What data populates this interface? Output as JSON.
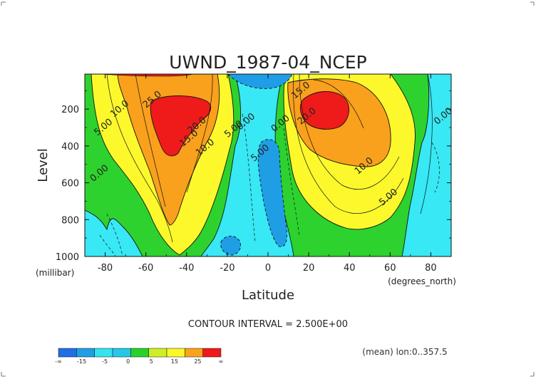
{
  "chart_data": {
    "type": "contour",
    "title": "UWND_1987-04_NCEP",
    "xlabel": "Latitude",
    "ylabel": "Level",
    "x_units": "(degrees_north)",
    "y_units": "(millibar)",
    "xlim": [
      -90,
      90
    ],
    "ylim": [
      1000,
      10
    ],
    "x_ticks": [
      "-80",
      "-60",
      "-40",
      "-20",
      "0",
      "20",
      "40",
      "60",
      "80"
    ],
    "y_ticks": [
      "200",
      "400",
      "600",
      "800",
      "1000"
    ],
    "contour_interval_text": "CONTOUR INTERVAL = 2.500E+00",
    "footnote": "(mean) lon:0..357.5",
    "features": [
      {
        "kind": "westerly-jet",
        "lat": -52,
        "level": 250,
        "max": 27.5
      },
      {
        "kind": "westerly-jet",
        "lat": 28,
        "level": 170,
        "max": 32.5
      },
      {
        "kind": "easterly-minimum",
        "lat": 2,
        "level": 600,
        "min": -7.5
      }
    ],
    "contour_labels": [
      {
        "text": "10.0",
        "lat": -72,
        "level": 210
      },
      {
        "text": "5.00",
        "lat": -80,
        "level": 310
      },
      {
        "text": "0.00",
        "lat": -82,
        "level": 560
      },
      {
        "text": "25.0",
        "lat": -56,
        "level": 160
      },
      {
        "text": "20.0",
        "lat": -34,
        "level": 300
      },
      {
        "text": "15.0",
        "lat": -38,
        "level": 370
      },
      {
        "text": "10.0",
        "lat": -30,
        "level": 420
      },
      {
        "text": "5.00",
        "lat": -16,
        "level": 320
      },
      {
        "text": "0.00",
        "lat": -10,
        "level": 280
      },
      {
        "text": "5.00",
        "lat": -3,
        "level": 450
      },
      {
        "text": "0.00",
        "lat": 7,
        "level": 290
      },
      {
        "text": "15.0",
        "lat": 17,
        "level": 110
      },
      {
        "text": "20.0",
        "lat": 20,
        "level": 250
      },
      {
        "text": "10.0",
        "lat": 48,
        "level": 520
      },
      {
        "text": "5.00",
        "lat": 60,
        "level": 690
      },
      {
        "text": "0.00",
        "lat": 87,
        "level": 250
      }
    ],
    "colorbar": {
      "colors": [
        "#1f6fe5",
        "#1e9fe6",
        "#33e3f0",
        "#23c8e8",
        "#2ad12a",
        "#d0ef22",
        "#fbf829",
        "#fca31c",
        "#f01818"
      ],
      "labels": [
        "-∞",
        "-15",
        "-5",
        "0",
        "5",
        "15",
        "25",
        "∞"
      ]
    },
    "fills": {
      "background_neg": "#38e8f4",
      "neg5": "#1f9ee6",
      "zero_band": "#2ed22e",
      "y5": "#fcf82c",
      "y15": "#f9a01c",
      "y25": "#ef1b1b"
    }
  }
}
